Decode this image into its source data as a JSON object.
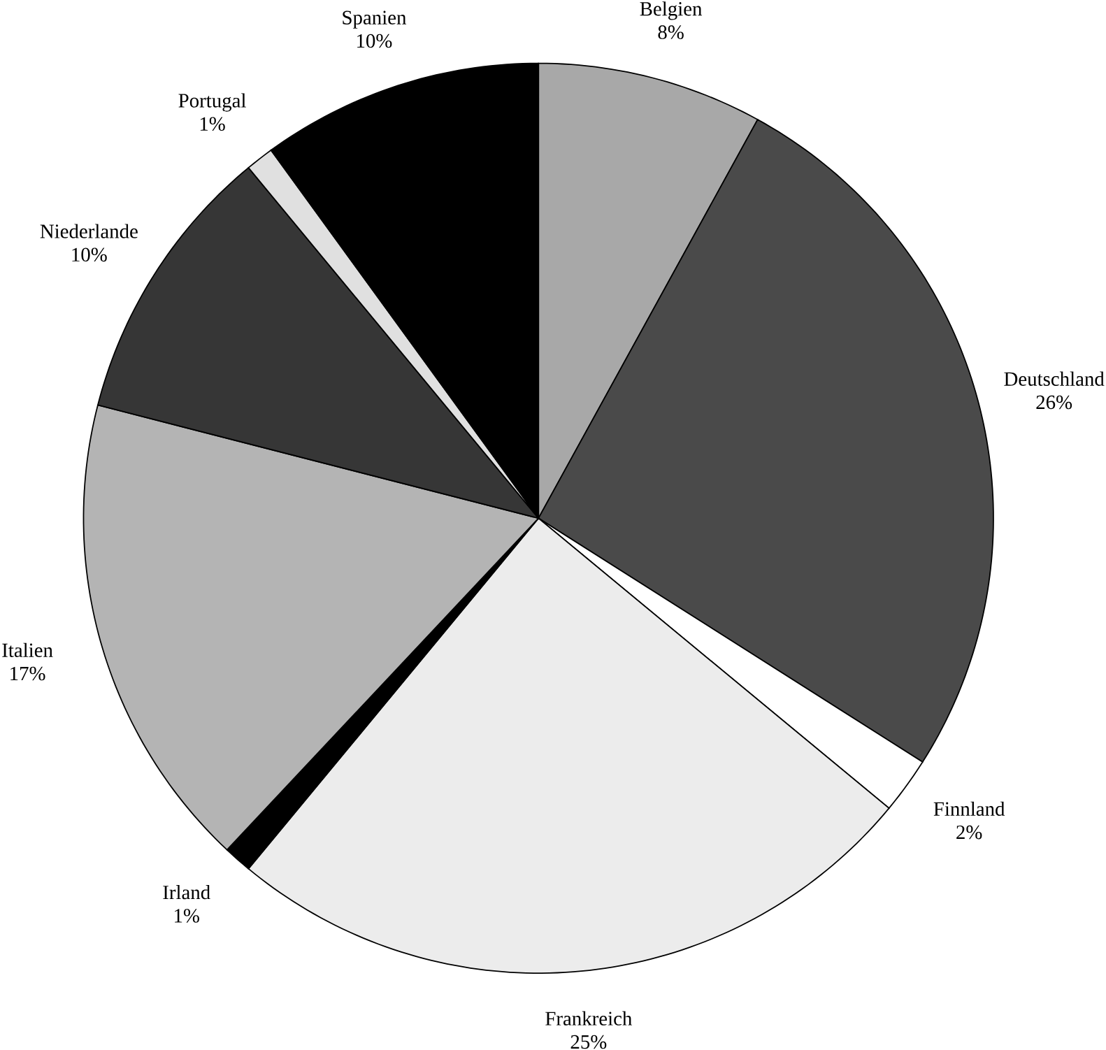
{
  "chart_data": {
    "type": "pie",
    "categories": [
      "Belgien",
      "Deutschland",
      "Finnland",
      "Frankreich",
      "Irland",
      "Italien",
      "Niederlande",
      "Portugal",
      "Spanien"
    ],
    "values": [
      8,
      26,
      2,
      25,
      1,
      17,
      10,
      1,
      10
    ],
    "value_labels": [
      "8%",
      "26%",
      "2%",
      "25%",
      "1%",
      "17%",
      "10%",
      "1%",
      "10%"
    ],
    "colors": [
      "#a8a8a8",
      "#4a4a4a",
      "#ffffff",
      "#ececec",
      "#000000",
      "#b4b4b4",
      "#363636",
      "#e0e0e0",
      "#000000"
    ]
  }
}
